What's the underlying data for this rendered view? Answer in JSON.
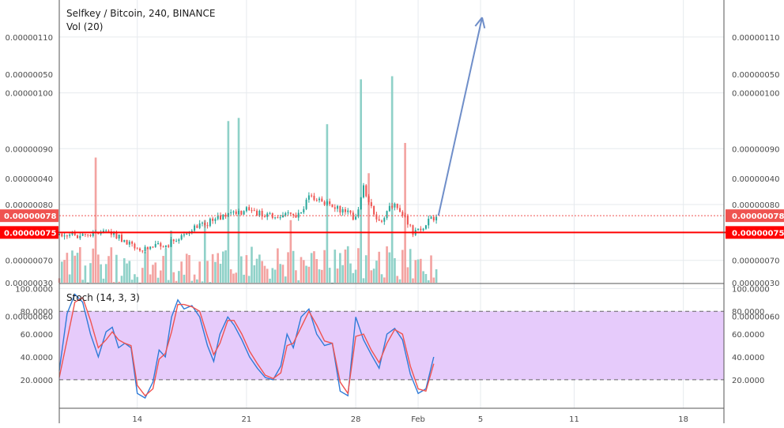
{
  "header": {
    "title": "Selfkey / Bitcoin, 240, BINANCE",
    "volume_label": "Vol (20)",
    "stoch_label": "Stoch (14, 3, 3)"
  },
  "colors": {
    "up": "#26a69a",
    "down": "#ef5350",
    "vol_up": "#8fd1c8",
    "vol_down": "#f3a3a1",
    "stoch_k": "#2f7bd8",
    "stoch_d": "#ef5350",
    "stoch_band": "#e6cbfb",
    "arrow": "#6f8ec9",
    "support": "#ff0000",
    "grid": "#e6eaee"
  },
  "chart_data": [
    {
      "type": "candlestick",
      "title": "Selfkey / Bitcoin, 240, BINANCE",
      "price_axis": {
        "range": [
          6.6e-07,
          1.155e-06
        ],
        "ticks": [
          "0.00000060",
          "0.00000070",
          "0.00000080",
          "0.00000090",
          "0.00000100",
          "0.00000110"
        ],
        "tick_values": [
          6e-07,
          7e-07,
          8e-07,
          9e-07,
          1e-06,
          1.1e-06
        ]
      },
      "time_axis": {
        "ticks": [
          "14",
          "21",
          "28",
          "Feb",
          "5",
          "11",
          "18"
        ],
        "tick_positions_days": [
          14,
          21,
          28,
          32,
          36,
          42,
          49
        ],
        "range_days": [
          9.0,
          51.6
        ]
      },
      "current_price": {
        "value": 7.8e-07,
        "label": "0.00000078"
      },
      "support_line": {
        "value": 7.5e-07,
        "label": "0.00000075"
      },
      "projection_arrow": {
        "from_day": 33.3,
        "from_price": 7.8e-07,
        "to_day": 36.1,
        "to_price": 1.135e-06
      },
      "segments": [
        {
          "day": 9.0,
          "price": 7.45e-07
        },
        {
          "day": 11.0,
          "price": 7.45e-07
        },
        {
          "day": 12.0,
          "price": 7.55e-07
        },
        {
          "day": 14.0,
          "price": 7.2e-07
        },
        {
          "day": 16.0,
          "price": 7.3e-07
        },
        {
          "day": 17.5,
          "price": 7.55e-07
        },
        {
          "day": 19.5,
          "price": 7.8e-07
        },
        {
          "day": 21.0,
          "price": 7.9e-07
        },
        {
          "day": 22.5,
          "price": 7.8e-07
        },
        {
          "day": 24.5,
          "price": 7.8e-07
        },
        {
          "day": 25.0,
          "price": 8.15e-07
        },
        {
          "day": 26.5,
          "price": 8e-07
        },
        {
          "day": 28.0,
          "price": 7.75e-07
        },
        {
          "day": 28.5,
          "price": 8.3e-07
        },
        {
          "day": 29.5,
          "price": 7.65e-07
        },
        {
          "day": 30.5,
          "price": 8.05e-07
        },
        {
          "day": 31.7,
          "price": 7.5e-07
        },
        {
          "day": 33.2,
          "price": 7.8e-07
        }
      ]
    },
    {
      "type": "bar",
      "title": "Vol (20)",
      "volume_axis": {
        "range": [
          3e-07,
          5.65e-07
        ],
        "ticks": [
          "0.00000030",
          "0.00000040",
          "0.00000050"
        ],
        "tick_values": [
          3e-07,
          4e-07,
          5e-07
        ]
      },
      "spikes": [
        {
          "day": 11.4,
          "value": 4.2e-07,
          "up": false
        },
        {
          "day": 16.1,
          "value": 3.5e-07,
          "up": true
        },
        {
          "day": 18.3,
          "value": 3.6e-07,
          "up": true
        },
        {
          "day": 19.8,
          "value": 4.55e-07,
          "up": true
        },
        {
          "day": 20.5,
          "value": 4.58e-07,
          "up": true
        },
        {
          "day": 23.9,
          "value": 3.6e-07,
          "up": false
        },
        {
          "day": 26.2,
          "value": 4.52e-07,
          "up": true
        },
        {
          "day": 28.3,
          "value": 4.95e-07,
          "up": true
        },
        {
          "day": 28.9,
          "value": 4.05e-07,
          "up": false
        },
        {
          "day": 30.3,
          "value": 4.98e-07,
          "up": true
        },
        {
          "day": 31.2,
          "value": 4.34e-07,
          "up": false
        }
      ]
    },
    {
      "type": "line",
      "title": "Stoch (14, 3, 3)",
      "y_axis": {
        "range": [
          -5,
          103
        ],
        "ticks": [
          "100.0000",
          "80.0000",
          "60.0000",
          "40.0000",
          "20.0000"
        ],
        "tick_values": [
          100,
          80,
          60,
          40,
          20
        ]
      },
      "band": {
        "upper": 80,
        "lower": 20
      },
      "series": [
        {
          "key": "k",
          "x": [
            9.0,
            9.5,
            10.0,
            10.5,
            11.0,
            11.5,
            12.0,
            12.4,
            12.8,
            13.2,
            13.6,
            14.0,
            14.5,
            15.0,
            15.4,
            15.8,
            16.2,
            16.6,
            17.0,
            17.5,
            18.0,
            18.5,
            18.9,
            19.3,
            19.8,
            20.2,
            20.7,
            21.2,
            21.7,
            22.2,
            22.7,
            23.2,
            23.6,
            24.0,
            24.5,
            25.0,
            25.5,
            26.0,
            26.5,
            27.0,
            27.5,
            28.0,
            28.5,
            29.0,
            29.5,
            30.0,
            30.5,
            31.0,
            31.5,
            32.0,
            32.5,
            33.0
          ],
          "y": [
            28,
            78,
            95,
            88,
            60,
            40,
            62,
            66,
            48,
            52,
            48,
            8,
            4,
            18,
            46,
            40,
            75,
            90,
            82,
            85,
            75,
            50,
            36,
            60,
            75,
            68,
            55,
            40,
            30,
            22,
            20,
            32,
            60,
            48,
            75,
            82,
            60,
            50,
            52,
            10,
            6,
            75,
            55,
            42,
            30,
            60,
            65,
            55,
            25,
            8,
            12,
            40
          ]
        },
        {
          "key": "d",
          "x": [
            9.0,
            9.5,
            10.0,
            10.5,
            11.0,
            11.5,
            12.0,
            12.4,
            12.8,
            13.2,
            13.6,
            14.0,
            14.5,
            15.0,
            15.4,
            15.8,
            16.2,
            16.6,
            17.0,
            17.5,
            18.0,
            18.5,
            18.9,
            19.3,
            19.8,
            20.2,
            20.7,
            21.2,
            21.7,
            22.2,
            22.7,
            23.2,
            23.6,
            24.0,
            24.5,
            25.0,
            25.5,
            26.0,
            26.5,
            27.0,
            27.5,
            28.0,
            28.5,
            29.0,
            29.5,
            30.0,
            30.5,
            31.0,
            31.5,
            32.0,
            32.5,
            33.0
          ],
          "y": [
            22,
            55,
            88,
            92,
            72,
            48,
            55,
            62,
            55,
            52,
            50,
            15,
            6,
            12,
            38,
            43,
            62,
            86,
            86,
            84,
            80,
            58,
            42,
            52,
            72,
            72,
            60,
            45,
            34,
            24,
            21,
            26,
            50,
            52,
            66,
            80,
            68,
            54,
            52,
            18,
            8,
            58,
            60,
            46,
            35,
            52,
            64,
            60,
            32,
            12,
            10,
            34
          ]
        }
      ]
    }
  ]
}
